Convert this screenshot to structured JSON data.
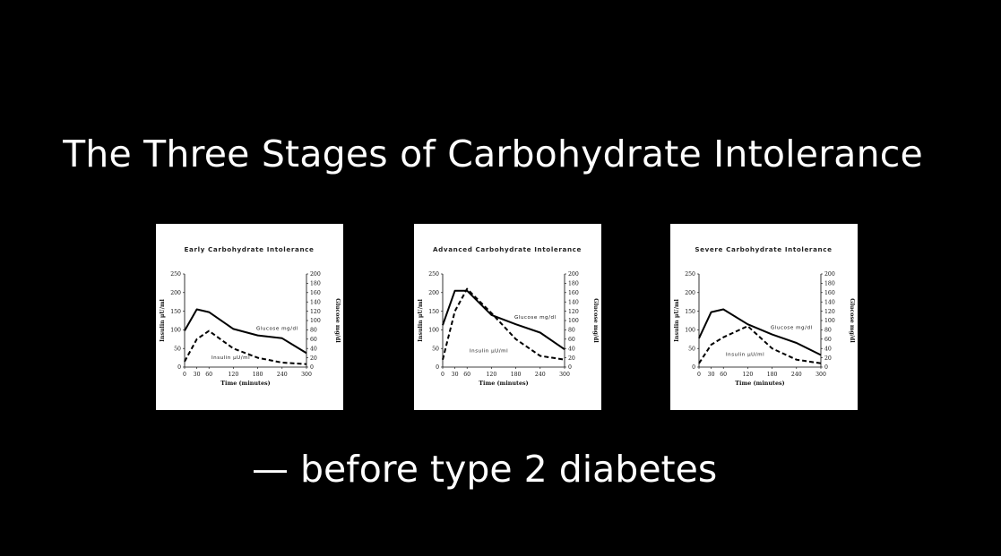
{
  "slide": {
    "title": "The Three Stages of Carbohydrate Intolerance",
    "subtitle": "— before type 2 diabetes"
  },
  "colors": {
    "background": "#000000",
    "text": "#ffffff",
    "card": "#ffffff",
    "ink": "#000000"
  },
  "chart_data": [
    {
      "type": "line",
      "title": "Early Carbohydrate Intolerance",
      "xlabel": "Time (minutes)",
      "ylabel_left": "Insulin μU/ml",
      "ylabel_right": "Glucose mg/dl",
      "x": [
        0,
        30,
        60,
        120,
        180,
        240,
        300
      ],
      "xlim": [
        0,
        300
      ],
      "ylim_left": [
        0,
        250
      ],
      "ylim_right": [
        0,
        200
      ],
      "x_ticks": [
        "0",
        "30",
        "60",
        "120",
        "180",
        "240",
        "300"
      ],
      "y_ticks_left": [
        "0",
        "50",
        "100",
        "150",
        "200",
        "250"
      ],
      "y_ticks_right": [
        "0",
        "20",
        "40",
        "60",
        "80",
        "100",
        "120",
        "140",
        "160",
        "180",
        "200"
      ],
      "series": [
        {
          "name": "Glucose mg/dl",
          "axis": "right",
          "style": "solid",
          "values": [
            78,
            124,
            118,
            82,
            68,
            62,
            30
          ]
        },
        {
          "name": "Insulin μU/ml",
          "axis": "left",
          "style": "dashed",
          "values": [
            15,
            75,
            97,
            50,
            25,
            12,
            8
          ]
        }
      ]
    },
    {
      "type": "line",
      "title": "Advanced Carbohydrate Intolerance",
      "xlabel": "Time (minutes)",
      "ylabel_left": "Insulin μU/ml",
      "ylabel_right": "Glucose mg/dl",
      "x": [
        0,
        30,
        60,
        120,
        180,
        240,
        300
      ],
      "xlim": [
        0,
        300
      ],
      "ylim_left": [
        0,
        250
      ],
      "ylim_right": [
        0,
        200
      ],
      "x_ticks": [
        "0",
        "30",
        "60",
        "120",
        "180",
        "240",
        "300"
      ],
      "y_ticks_left": [
        "0",
        "50",
        "100",
        "150",
        "200",
        "250"
      ],
      "y_ticks_right": [
        "0",
        "20",
        "40",
        "60",
        "80",
        "100",
        "120",
        "140",
        "160",
        "180",
        "200"
      ],
      "series": [
        {
          "name": "Glucose mg/dl",
          "axis": "right",
          "style": "solid",
          "values": [
            90,
            164,
            164,
            112,
            92,
            74,
            38
          ]
        },
        {
          "name": "Insulin μU/ml",
          "axis": "left",
          "style": "dashed",
          "values": [
            20,
            150,
            210,
            145,
            75,
            30,
            20
          ]
        }
      ]
    },
    {
      "type": "line",
      "title": "Severe Carbohydrate Intolerance",
      "xlabel": "Time (minutes)",
      "ylabel_left": "Insulin μU/ml",
      "ylabel_right": "Glucose mg/dl",
      "x": [
        0,
        30,
        60,
        120,
        180,
        240,
        300
      ],
      "xlim": [
        0,
        300
      ],
      "ylim_left": [
        0,
        250
      ],
      "ylim_right": [
        0,
        200
      ],
      "x_ticks": [
        "0",
        "30",
        "60",
        "120",
        "180",
        "240",
        "300"
      ],
      "y_ticks_left": [
        "0",
        "50",
        "100",
        "150",
        "200",
        "250"
      ],
      "y_ticks_right": [
        "0",
        "20",
        "40",
        "60",
        "80",
        "100",
        "120",
        "140",
        "160",
        "180",
        "200"
      ],
      "series": [
        {
          "name": "Glucose mg/dl",
          "axis": "right",
          "style": "solid",
          "values": [
            62,
            118,
            124,
            92,
            70,
            52,
            26
          ]
        },
        {
          "name": "Insulin μU/ml",
          "axis": "left",
          "style": "dashed",
          "values": [
            10,
            60,
            80,
            110,
            50,
            20,
            10
          ]
        }
      ]
    }
  ]
}
